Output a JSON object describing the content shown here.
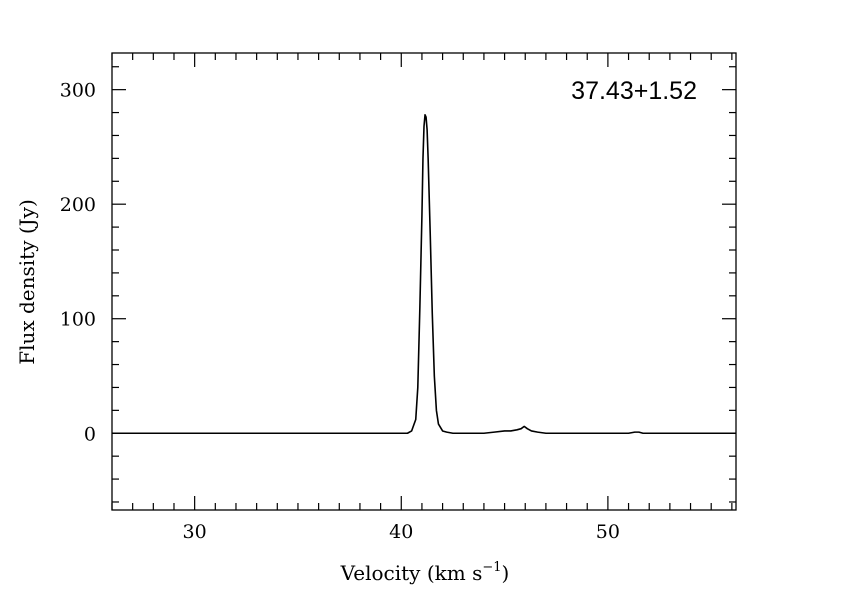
{
  "chart_data": {
    "type": "line",
    "title": "",
    "annotation": "37.43+1.52",
    "xlabel": "Velocity (km s",
    "xlabel_sup": "−1",
    "xlabel_tail": ")",
    "ylabel": "Flux density (Jy)",
    "xlim": [
      26.0,
      56.2
    ],
    "ylim": [
      -67,
      332
    ],
    "xticks": [
      30,
      40,
      50
    ],
    "yticks": [
      0,
      100,
      200,
      300
    ],
    "x_minor_step": 1,
    "y_minor_step": 20,
    "grid": false,
    "legend": "none",
    "line_color": "#000000",
    "series": [
      {
        "x": [
          26.0,
          26.5,
          27.0,
          27.5,
          28.0,
          28.5,
          29.0,
          29.5,
          30.0,
          30.5,
          31.0,
          31.5,
          32.0,
          32.5,
          33.0,
          33.5,
          34.0,
          34.5,
          35.0,
          35.5,
          36.0,
          36.5,
          37.0,
          37.5,
          38.0,
          38.5,
          39.0,
          39.5,
          40.0,
          40.3,
          40.5,
          40.7,
          40.8,
          40.9,
          41.0,
          41.05,
          41.1,
          41.15,
          41.2,
          41.25,
          41.3,
          41.4,
          41.5,
          41.6,
          41.7,
          41.8,
          42.0,
          42.2,
          42.5,
          43.0,
          43.5,
          44.0,
          44.5,
          45.0,
          45.3,
          45.6,
          45.8,
          45.95,
          46.1,
          46.3,
          46.6,
          47.0,
          47.5,
          48.0,
          48.5,
          49.0,
          49.5,
          50.0,
          50.5,
          51.0,
          51.3,
          51.5,
          51.7,
          52.0,
          52.5,
          53.0,
          53.5,
          54.0,
          54.5,
          55.0,
          55.5,
          56.2
        ],
        "y": [
          0,
          0,
          0,
          0,
          0,
          0,
          0,
          0,
          0,
          0,
          0,
          0,
          0,
          0,
          0,
          0,
          0,
          0,
          0,
          0,
          0,
          0,
          0,
          0,
          0,
          0,
          0,
          0,
          0,
          0,
          2,
          12,
          40,
          110,
          190,
          240,
          268,
          278,
          276,
          265,
          240,
          175,
          105,
          50,
          20,
          8,
          2,
          1,
          0,
          0,
          0,
          0,
          1,
          2,
          2,
          3,
          4,
          6,
          4,
          2,
          1,
          0,
          0,
          0,
          0,
          0,
          0,
          0,
          0,
          0,
          1,
          1,
          0,
          0,
          0,
          0,
          0,
          0,
          0,
          0,
          0,
          0
        ]
      }
    ]
  }
}
